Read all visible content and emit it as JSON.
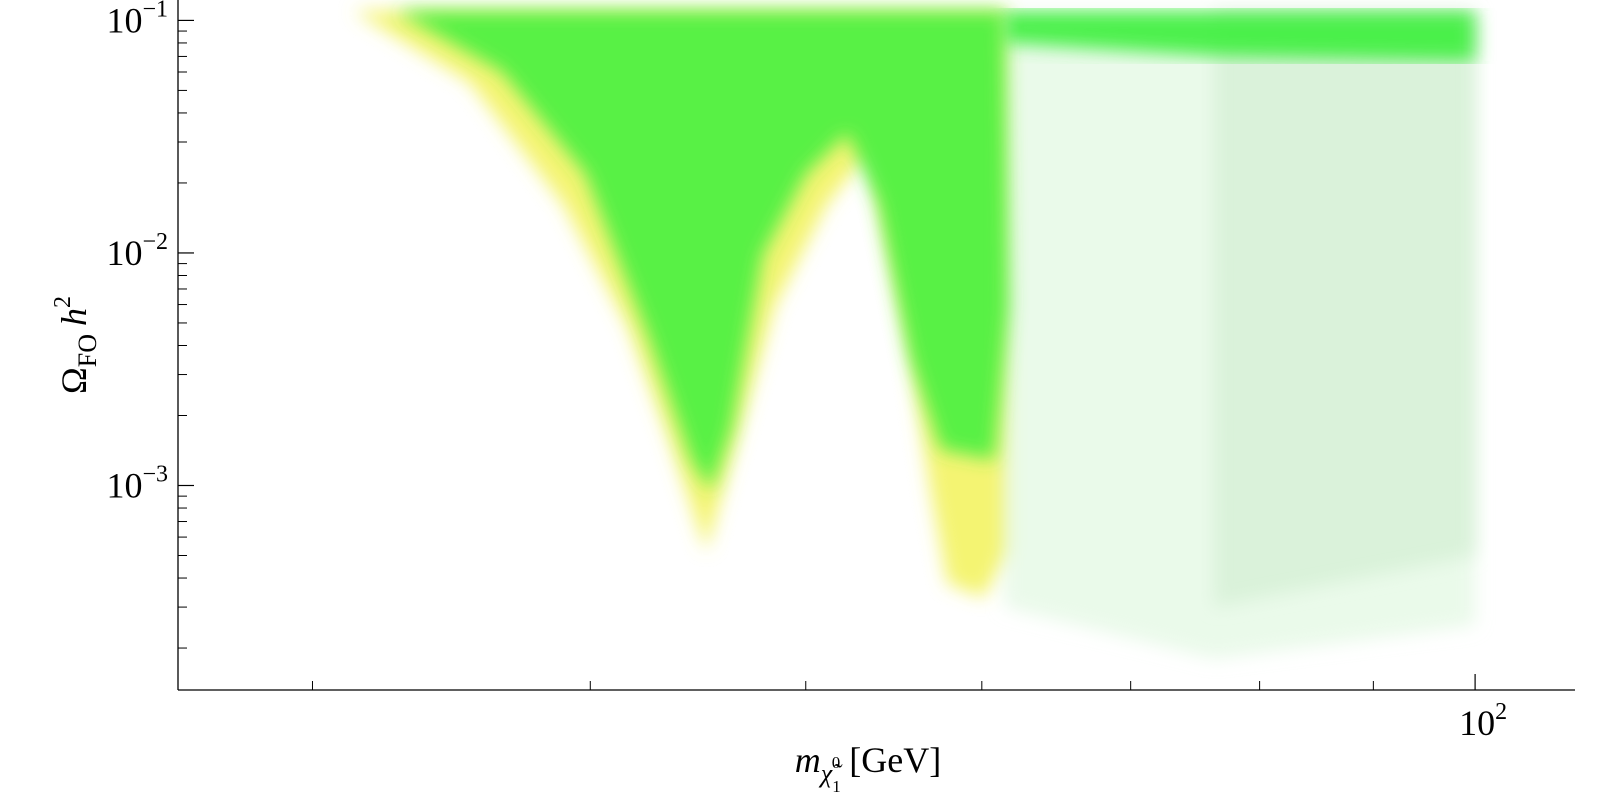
{
  "chart_data": {
    "type": "area",
    "xlog": true,
    "ylog": true,
    "xlim": [
      26.1,
      110.9
    ],
    "ylim": [
      0.000132,
      0.1224
    ],
    "xticks": [
      {
        "value": 100,
        "label": "10",
        "exponent": "2"
      }
    ],
    "xminorticks": [
      30,
      40,
      50,
      60,
      70,
      80,
      90
    ],
    "yticks": [
      {
        "value": 0.1,
        "label": "10",
        "exponent": "−1"
      },
      {
        "value": 0.01,
        "label": "10",
        "exponent": "−2"
      },
      {
        "value": 0.001,
        "label": "10",
        "exponent": "−3"
      }
    ],
    "yminorticks": [
      0.0002,
      0.0003,
      0.0004,
      0.0005,
      0.0006,
      0.0007,
      0.0008,
      0.0009,
      0.002,
      0.003,
      0.004,
      0.005,
      0.006,
      0.007,
      0.008,
      0.009,
      0.02,
      0.03,
      0.04,
      0.05,
      0.06,
      0.07,
      0.08,
      0.09
    ],
    "xlabel": [
      {
        "text": "m",
        "style": "italic"
      },
      {
        "text": "χ̃",
        "style": "italic",
        "shift": "sub"
      },
      {
        "text": "1",
        "shift": "subsub"
      },
      {
        "text": "0",
        "shift": "subsup"
      },
      {
        "text": " [GeV]"
      }
    ],
    "ylabel": [
      {
        "text": "Ω"
      },
      {
        "text": "FO",
        "shift": "sub"
      },
      {
        "text": "h",
        "style": "italic"
      },
      {
        "text": "2",
        "shift": "sup"
      }
    ],
    "series": [
      {
        "color": "#f2f25a",
        "opacity": 0.85,
        "x": [
          31.3,
          35.3,
          38.9,
          41.6,
          43.4,
          45.1,
          46.3,
          48.4,
          51.1,
          53.3,
          55.7,
          56.9,
          57.9,
          60.1,
          61.7,
          61.7
        ],
        "y": [
          0.11,
          0.0545,
          0.0162,
          0.0048,
          0.00158,
          0.00052,
          0.00129,
          0.00588,
          0.0162,
          0.0268,
          0.00354,
          0.00095,
          0.00038,
          0.00033,
          0.00052,
          0.11
        ]
      },
      {
        "color": "#d8f5d8",
        "opacity": 0.55,
        "x": [
          61.4,
          61.4,
          76.3,
          100,
          100
        ],
        "y": [
          0.11,
          0.0003,
          0.00018,
          0.00025,
          0.11
        ]
      },
      {
        "color": "#cfeccf",
        "opacity": 0.6,
        "x": [
          76.3,
          76.3,
          100,
          100
        ],
        "y": [
          0.11,
          0.0003,
          0.0005,
          0.11
        ]
      },
      {
        "color": "#3cf03c",
        "opacity": 0.9,
        "x": [
          61.4,
          100,
          100,
          76.3,
          61.4
        ],
        "y": [
          0.11,
          0.11,
          0.0667,
          0.07,
          0.08
        ]
      },
      {
        "color": "#3cf03c",
        "opacity": 0.85,
        "x": [
          32.7,
          36.5,
          39.8,
          42.5,
          44.4,
          45.3,
          46.3,
          47.8,
          50.0,
          52.2,
          53.9,
          55.7,
          57.5,
          60.8,
          61.7,
          61.4
        ],
        "y": [
          0.11,
          0.0603,
          0.0219,
          0.00434,
          0.00129,
          0.00095,
          0.00175,
          0.00975,
          0.0219,
          0.0328,
          0.0162,
          0.00354,
          0.00143,
          0.00129,
          0.00588,
          0.11
        ]
      }
    ]
  }
}
